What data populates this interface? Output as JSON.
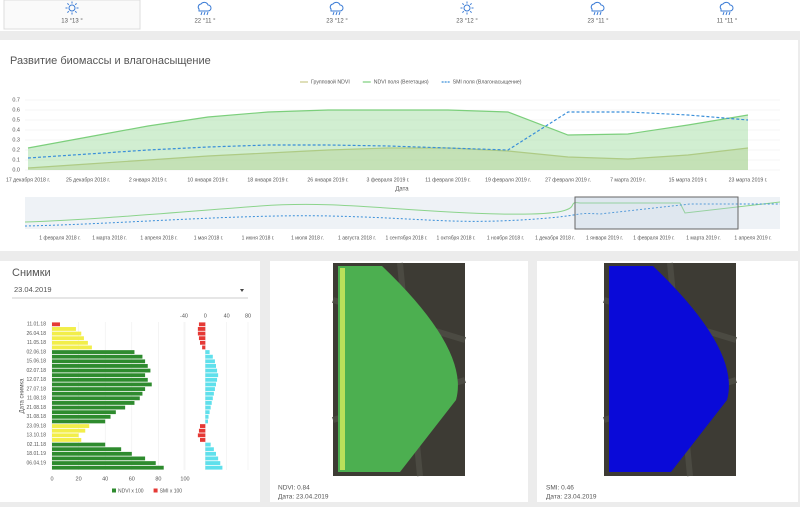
{
  "weather": [
    {
      "temp": "13 °13 °",
      "icon": "sun"
    },
    {
      "temp": "22 °11 °",
      "icon": "rain"
    },
    {
      "temp": "23 °12 °",
      "icon": "rain"
    },
    {
      "temp": "23 °12 °",
      "icon": "sun"
    },
    {
      "temp": "23 °11 °",
      "icon": "rain"
    },
    {
      "temp": "11 °11 °",
      "icon": "rain"
    }
  ],
  "biomass_chart": {
    "type": "line",
    "title": "Развитие биомассы и влагонасыщение",
    "x_label": "Дата",
    "categories": [
      "17 декабря 2018 г.",
      "25 декабря 2018 г.",
      "2 января 2019 г.",
      "10 января 2019 г.",
      "18 января 2019 г.",
      "26 января 2019 г.",
      "3 февраля 2019 г.",
      "11 февраля 2019 г.",
      "19 февраля 2019 г.",
      "27 февраля 2019 г.",
      "7 марта 2019 г.",
      "15 марта 2019 г.",
      "23 марта 2019 г."
    ],
    "series": [
      {
        "name": "Групповой NDVI",
        "color": "#c9c98a",
        "area": true,
        "values": [
          0.02,
          0.06,
          0.1,
          0.14,
          0.17,
          0.2,
          0.22,
          0.22,
          0.19,
          0.13,
          0.11,
          0.15,
          0.22
        ]
      },
      {
        "name": "NDVI поля (Вегетация)",
        "color": "#7ccf7c",
        "area": true,
        "values": [
          0.22,
          0.33,
          0.44,
          0.53,
          0.58,
          0.6,
          0.6,
          0.6,
          0.58,
          0.35,
          0.36,
          0.45,
          0.55
        ]
      },
      {
        "name": "SMI поля (Влагонасыщение)",
        "color": "#3a8fd9",
        "dash": true,
        "values": [
          0.12,
          0.16,
          0.2,
          0.23,
          0.25,
          0.25,
          0.24,
          0.22,
          0.2,
          0.58,
          0.58,
          0.55,
          0.5
        ]
      }
    ],
    "ylim": [
      0,
      0.75
    ],
    "yticks": [
      {
        "value": 0,
        "label": "0.0"
      },
      0.1,
      0.2,
      0.3,
      0.4,
      0.5,
      0.6,
      0.7
    ],
    "grid": true,
    "legend": "top"
  },
  "navigator": {
    "labels": [
      "1 февраля 2018 г.",
      "1 марта 2018 г.",
      "1 апреля 2018 г.",
      "1 мая 2018 г.",
      "1 июня 2018 г.",
      "1 июля 2018 г.",
      "1 августа 2018 г.",
      "1 сентября 2018 г.",
      "1 октября 2018 г.",
      "1 ноября 2018 г.",
      "1 декабря 2018 г.",
      "1 января 2019 г.",
      "1 февраля 2019 г.",
      "1 марта 2019 г.",
      "1 апреля 2019 г."
    ]
  },
  "snapshots": {
    "title": "Снимки",
    "selected_date": "23.04.2019",
    "chart": {
      "type": "bar",
      "y_label": "Дата снимка",
      "categories": [
        "11.01.18",
        null,
        "26.04.18",
        null,
        "11.05.18",
        null,
        "02.06.18",
        null,
        "15.06.18",
        null,
        "02.07.18",
        null,
        "12.07.18",
        null,
        "27.07.18",
        null,
        "11.08.18",
        null,
        "21.08.18",
        null,
        "31.08.18",
        null,
        "23.09.18",
        null,
        "13.10.18",
        null,
        "02.11.18",
        null,
        "18.01.19",
        null,
        "06.04.19",
        null
      ],
      "series": [
        {
          "name": "NDVI x 100",
          "color": "#2e8b2e",
          "values": [
            6,
            18,
            22,
            24,
            27,
            30,
            62,
            68,
            70,
            72,
            74,
            70,
            72,
            75,
            70,
            68,
            66,
            62,
            55,
            48,
            44,
            40,
            28,
            25,
            20,
            22,
            40,
            52,
            60,
            70,
            78,
            84
          ],
          "colors": [
            "#e53935",
            "#f2ee4a",
            "#f2ee4a",
            "#f2ee4a",
            "#f2ee4a",
            "#f2ee4a",
            "#2e8b2e",
            "#2e8b2e",
            "#2e8b2e",
            "#2e8b2e",
            "#2e8b2e",
            "#2e8b2e",
            "#2e8b2e",
            "#2e8b2e",
            "#2e8b2e",
            "#2e8b2e",
            "#2e8b2e",
            "#2e8b2e",
            "#2e8b2e",
            "#2e8b2e",
            "#2e8b2e",
            "#2e8b2e",
            "#f2ee4a",
            "#f2ee4a",
            "#f2ee4a",
            "#f2ee4a",
            "#2e8b2e",
            "#2e8b2e",
            "#2e8b2e",
            "#2e8b2e",
            "#2e8b2e",
            "#2e8b2e"
          ],
          "xlim": [
            0,
            100
          ],
          "xticks": [
            0,
            20,
            40,
            60,
            80,
            100
          ]
        },
        {
          "name": "SMI x 100",
          "color": "#e53935",
          "values": [
            -12,
            -14,
            -14,
            -12,
            -10,
            -6,
            8,
            14,
            18,
            20,
            22,
            24,
            22,
            20,
            18,
            16,
            14,
            12,
            10,
            8,
            6,
            5,
            -10,
            -12,
            -14,
            -10,
            10,
            16,
            20,
            24,
            28,
            32
          ],
          "colors": [
            "#e53935",
            "#e53935",
            "#e53935",
            "#e53935",
            "#e53935",
            "#e53935",
            "#5fe0ec",
            "#5fe0ec",
            "#5fe0ec",
            "#5fe0ec",
            "#5fe0ec",
            "#5fe0ec",
            "#5fe0ec",
            "#5fe0ec",
            "#5fe0ec",
            "#5fe0ec",
            "#5fe0ec",
            "#5fe0ec",
            "#5fe0ec",
            "#5fe0ec",
            "#5fe0ec",
            "#5fe0ec",
            "#e53935",
            "#e53935",
            "#e53935",
            "#e53935",
            "#5fe0ec",
            "#5fe0ec",
            "#5fe0ec",
            "#5fe0ec",
            "#5fe0ec",
            "#5fe0ec"
          ],
          "xlim": [
            -40,
            80
          ],
          "xticks": [
            -40,
            0,
            40,
            80
          ]
        }
      ]
    }
  },
  "images": [
    {
      "label": "NDVI: 0.84",
      "date": "Дата: 23.04.2019"
    },
    {
      "label": "SMI: 0.46",
      "date": "Дата: 23.04.2019"
    }
  ]
}
